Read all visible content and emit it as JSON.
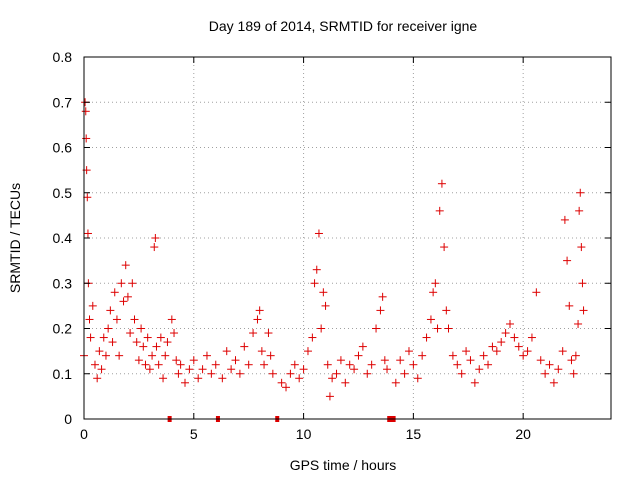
{
  "chart_data": {
    "type": "scatter",
    "title": "Day 189 of 2014, SRMTID for receiver igne",
    "xlabel": "GPS time / hours",
    "ylabel": "SRMTID / TECUs",
    "xlim": [
      0,
      24
    ],
    "ylim": [
      0,
      0.8
    ],
    "xticks": [
      0,
      5,
      10,
      15,
      20
    ],
    "xtick_labels": [
      "0",
      "5",
      "10",
      "15",
      "20"
    ],
    "yticks": [
      0,
      0.1,
      0.2,
      0.3,
      0.4,
      0.5,
      0.6,
      0.7,
      0.8
    ],
    "ytick_labels": [
      "0",
      "0.1",
      "0.2",
      "0.3",
      "0.4",
      "0.5",
      "0.6",
      "0.7",
      "0.8"
    ],
    "grid": true,
    "marker": "+",
    "color": "#dd0000",
    "gap_markers_x": [
      3.9,
      6.1,
      8.8,
      13.9,
      14.0,
      14.1
    ],
    "points": [
      [
        0.0,
        0.14
      ],
      [
        0.05,
        0.7
      ],
      [
        0.08,
        0.68
      ],
      [
        0.1,
        0.62
      ],
      [
        0.12,
        0.55
      ],
      [
        0.15,
        0.49
      ],
      [
        0.18,
        0.41
      ],
      [
        0.2,
        0.3
      ],
      [
        0.25,
        0.22
      ],
      [
        0.3,
        0.18
      ],
      [
        0.4,
        0.25
      ],
      [
        0.5,
        0.12
      ],
      [
        0.6,
        0.09
      ],
      [
        0.7,
        0.15
      ],
      [
        0.8,
        0.11
      ],
      [
        0.9,
        0.18
      ],
      [
        1.0,
        0.14
      ],
      [
        1.1,
        0.2
      ],
      [
        1.2,
        0.24
      ],
      [
        1.3,
        0.17
      ],
      [
        1.4,
        0.28
      ],
      [
        1.5,
        0.22
      ],
      [
        1.6,
        0.14
      ],
      [
        1.7,
        0.3
      ],
      [
        1.8,
        0.26
      ],
      [
        1.9,
        0.34
      ],
      [
        2.0,
        0.27
      ],
      [
        2.1,
        0.19
      ],
      [
        2.2,
        0.3
      ],
      [
        2.3,
        0.22
      ],
      [
        2.4,
        0.17
      ],
      [
        2.5,
        0.13
      ],
      [
        2.6,
        0.2
      ],
      [
        2.7,
        0.16
      ],
      [
        2.8,
        0.12
      ],
      [
        2.9,
        0.18
      ],
      [
        3.0,
        0.11
      ],
      [
        3.1,
        0.14
      ],
      [
        3.2,
        0.38
      ],
      [
        3.25,
        0.4
      ],
      [
        3.3,
        0.16
      ],
      [
        3.4,
        0.12
      ],
      [
        3.5,
        0.18
      ],
      [
        3.6,
        0.09
      ],
      [
        3.7,
        0.14
      ],
      [
        3.8,
        0.17
      ],
      [
        4.0,
        0.22
      ],
      [
        4.1,
        0.19
      ],
      [
        4.2,
        0.13
      ],
      [
        4.3,
        0.1
      ],
      [
        4.4,
        0.12
      ],
      [
        4.6,
        0.08
      ],
      [
        4.8,
        0.11
      ],
      [
        5.0,
        0.13
      ],
      [
        5.2,
        0.09
      ],
      [
        5.4,
        0.11
      ],
      [
        5.6,
        0.14
      ],
      [
        5.8,
        0.1
      ],
      [
        6.0,
        0.12
      ],
      [
        6.3,
        0.09
      ],
      [
        6.5,
        0.15
      ],
      [
        6.7,
        0.11
      ],
      [
        6.9,
        0.13
      ],
      [
        7.1,
        0.1
      ],
      [
        7.3,
        0.16
      ],
      [
        7.5,
        0.12
      ],
      [
        7.7,
        0.19
      ],
      [
        7.9,
        0.22
      ],
      [
        8.0,
        0.24
      ],
      [
        8.1,
        0.15
      ],
      [
        8.2,
        0.12
      ],
      [
        8.4,
        0.19
      ],
      [
        8.5,
        0.14
      ],
      [
        8.6,
        0.1
      ],
      [
        9.0,
        0.08
      ],
      [
        9.2,
        0.07
      ],
      [
        9.4,
        0.1
      ],
      [
        9.6,
        0.12
      ],
      [
        9.8,
        0.09
      ],
      [
        10.0,
        0.11
      ],
      [
        10.2,
        0.15
      ],
      [
        10.4,
        0.18
      ],
      [
        10.5,
        0.3
      ],
      [
        10.6,
        0.33
      ],
      [
        10.7,
        0.41
      ],
      [
        10.8,
        0.2
      ],
      [
        10.9,
        0.28
      ],
      [
        11.0,
        0.25
      ],
      [
        11.1,
        0.12
      ],
      [
        11.2,
        0.05
      ],
      [
        11.3,
        0.09
      ],
      [
        11.5,
        0.1
      ],
      [
        11.7,
        0.13
      ],
      [
        11.9,
        0.08
      ],
      [
        12.1,
        0.12
      ],
      [
        12.3,
        0.11
      ],
      [
        12.5,
        0.14
      ],
      [
        12.7,
        0.16
      ],
      [
        12.9,
        0.1
      ],
      [
        13.1,
        0.12
      ],
      [
        13.3,
        0.2
      ],
      [
        13.5,
        0.24
      ],
      [
        13.6,
        0.27
      ],
      [
        13.7,
        0.13
      ],
      [
        13.8,
        0.11
      ],
      [
        14.2,
        0.08
      ],
      [
        14.4,
        0.13
      ],
      [
        14.6,
        0.1
      ],
      [
        14.8,
        0.15
      ],
      [
        15.0,
        0.12
      ],
      [
        15.2,
        0.09
      ],
      [
        15.4,
        0.14
      ],
      [
        15.6,
        0.18
      ],
      [
        15.8,
        0.22
      ],
      [
        15.9,
        0.28
      ],
      [
        16.0,
        0.3
      ],
      [
        16.1,
        0.2
      ],
      [
        16.2,
        0.46
      ],
      [
        16.3,
        0.52
      ],
      [
        16.4,
        0.38
      ],
      [
        16.5,
        0.24
      ],
      [
        16.6,
        0.2
      ],
      [
        16.8,
        0.14
      ],
      [
        17.0,
        0.12
      ],
      [
        17.2,
        0.1
      ],
      [
        17.4,
        0.15
      ],
      [
        17.6,
        0.13
      ],
      [
        17.8,
        0.08
      ],
      [
        18.0,
        0.11
      ],
      [
        18.2,
        0.14
      ],
      [
        18.4,
        0.12
      ],
      [
        18.6,
        0.16
      ],
      [
        18.8,
        0.15
      ],
      [
        19.0,
        0.17
      ],
      [
        19.2,
        0.19
      ],
      [
        19.4,
        0.21
      ],
      [
        19.6,
        0.18
      ],
      [
        19.8,
        0.16
      ],
      [
        20.0,
        0.14
      ],
      [
        20.2,
        0.15
      ],
      [
        20.4,
        0.18
      ],
      [
        20.6,
        0.28
      ],
      [
        20.8,
        0.13
      ],
      [
        21.0,
        0.1
      ],
      [
        21.2,
        0.12
      ],
      [
        21.4,
        0.08
      ],
      [
        21.6,
        0.11
      ],
      [
        21.8,
        0.15
      ],
      [
        21.9,
        0.44
      ],
      [
        22.0,
        0.35
      ],
      [
        22.1,
        0.25
      ],
      [
        22.2,
        0.13
      ],
      [
        22.3,
        0.1
      ],
      [
        22.4,
        0.14
      ],
      [
        22.5,
        0.21
      ],
      [
        22.55,
        0.46
      ],
      [
        22.6,
        0.5
      ],
      [
        22.65,
        0.38
      ],
      [
        22.7,
        0.3
      ],
      [
        22.75,
        0.24
      ]
    ]
  }
}
